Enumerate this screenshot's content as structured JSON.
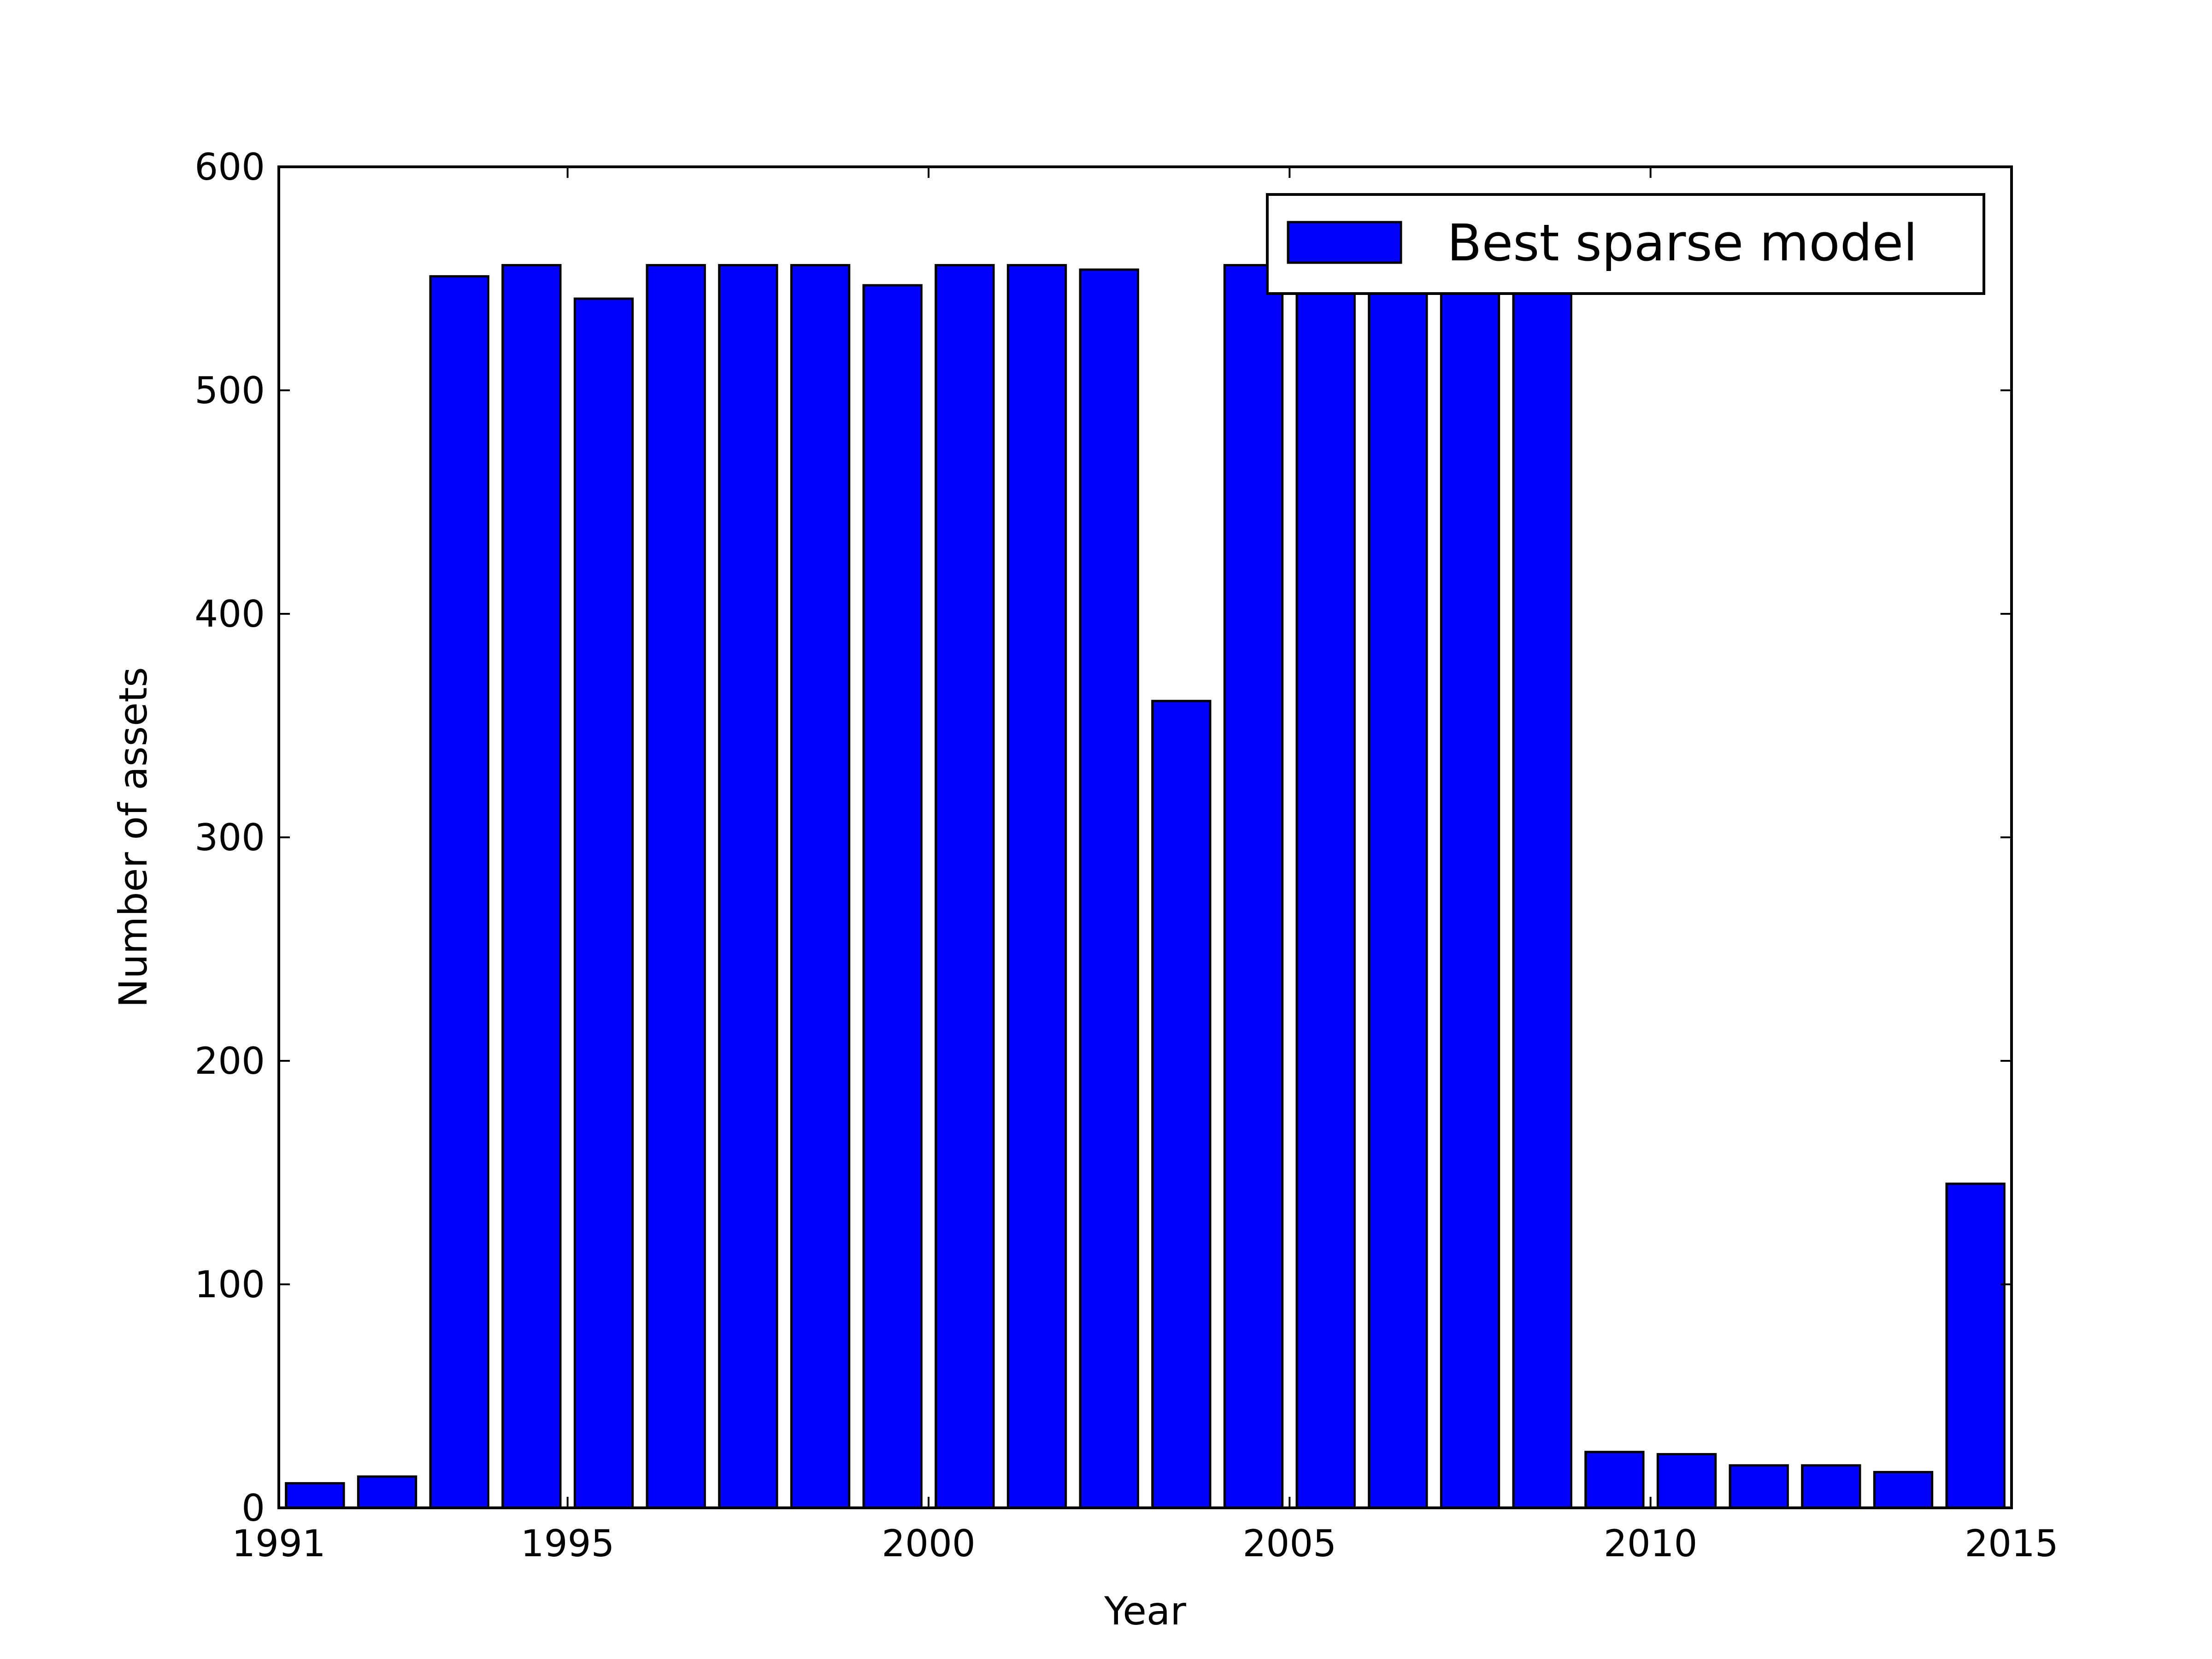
{
  "chart_data": {
    "type": "bar",
    "xlabel": "Year",
    "ylabel": "Number of assets",
    "xlim": [
      1991,
      2015
    ],
    "ylim": [
      0,
      600
    ],
    "xticks": [
      1991,
      1995,
      2000,
      2005,
      2010,
      2015
    ],
    "yticks": [
      0,
      100,
      200,
      300,
      400,
      500,
      600
    ],
    "grid": false,
    "legend_position": "top-right",
    "bar_color": "#0000ff",
    "series": [
      {
        "name": "Best sparse model",
        "x": [
          1991,
          1992,
          1993,
          1994,
          1995,
          1996,
          1997,
          1998,
          1999,
          2000,
          2001,
          2002,
          2003,
          2004,
          2005,
          2006,
          2007,
          2008,
          2009,
          2010,
          2011,
          2012,
          2013,
          2014
        ],
        "values": [
          11,
          14,
          551,
          556,
          541,
          556,
          556,
          556,
          547,
          556,
          556,
          554,
          361,
          556,
          556,
          556,
          556,
          556,
          25,
          24,
          19,
          19,
          16,
          145
        ]
      }
    ]
  }
}
